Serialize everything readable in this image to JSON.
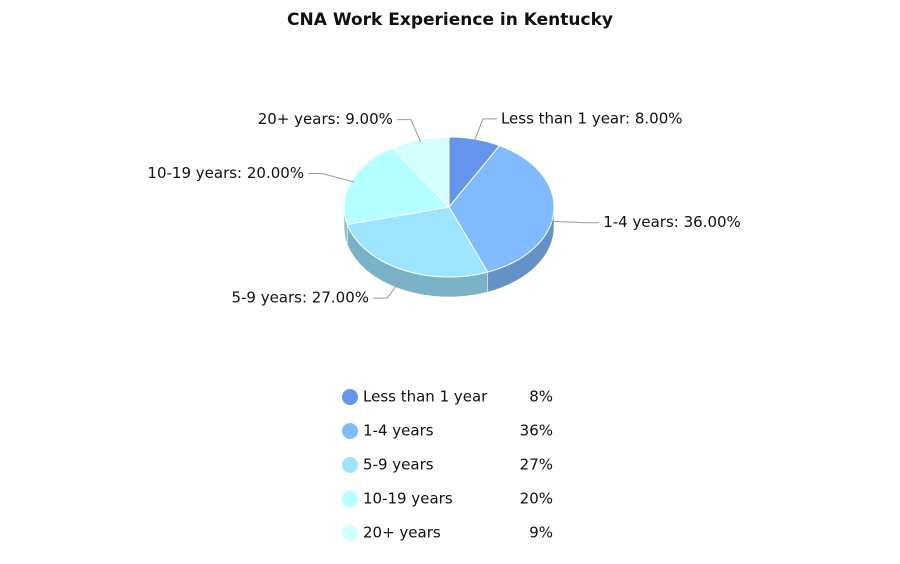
{
  "chart_data": {
    "type": "pie",
    "title": "CNA Work Experience in Kentucky",
    "categories": [
      "Less than 1 year",
      "1-4 years",
      "5-9 years",
      "10-19 years",
      "20+ years"
    ],
    "values": [
      8,
      36,
      27,
      20,
      9
    ],
    "value_labels": [
      "Less than 1 year: 8.00%",
      "1-4 years: 36.00%",
      "5-9 years: 27.00%",
      "10-19 years: 20.00%",
      "20+ years: 9.00%"
    ],
    "legend_labels": [
      "8%",
      "36%",
      "27%",
      "20%",
      "9%"
    ],
    "colors": [
      "#6495ed",
      "#80bbff",
      "#9ce4ff",
      "#b4ffff",
      "#d4ffff"
    ]
  }
}
